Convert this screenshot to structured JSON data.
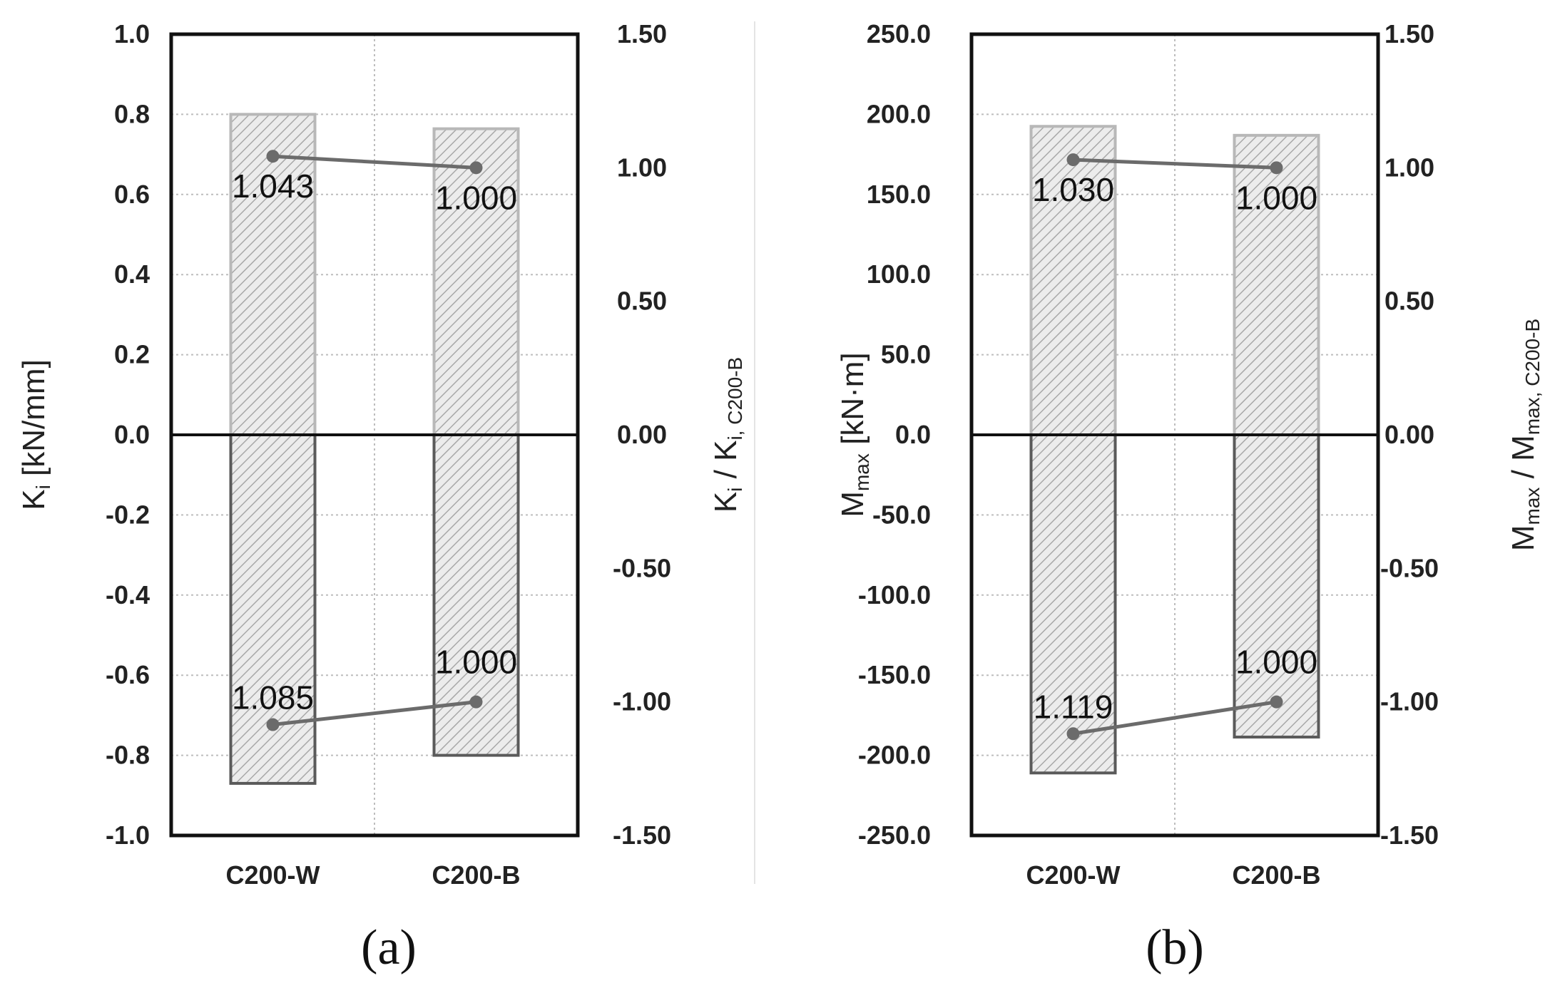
{
  "chart_data": [
    {
      "type": "bar",
      "panel_label": "(a)",
      "categories": [
        "C200-W",
        "C200-B"
      ],
      "ylabel": "K",
      "ylabel_sub": "i",
      "ylabel_unit": " [kN/mm]",
      "y2label": "K",
      "y2label_sub": "i",
      "y2label_mid": " / K",
      "y2label_sub2": "i, C200-B",
      "ylim": [
        -1.0,
        1.0
      ],
      "y_ticks": [
        "1.0",
        "0.8",
        "0.6",
        "0.4",
        "0.2",
        "0.0",
        "-0.2",
        "-0.4",
        "-0.6",
        "-0.8",
        "-1.0"
      ],
      "y2lim": [
        -1.5,
        1.5
      ],
      "y2_ticks": [
        "1.50",
        "1.00",
        "0.50",
        "0.00",
        "-0.50",
        "-1.00",
        "-1.50"
      ],
      "series": [
        {
          "name": "positive",
          "values": [
            0.8,
            0.764
          ]
        },
        {
          "name": "negative",
          "values": [
            -0.87,
            -0.8
          ]
        }
      ],
      "ratio_series": [
        {
          "name": "positive ratio",
          "values": [
            1.043,
            1.0
          ],
          "labels": [
            "1.043",
            "1.000"
          ]
        },
        {
          "name": "negative ratio",
          "values": [
            -1.085,
            -1.0
          ],
          "labels": [
            "1.085",
            "1.000"
          ]
        }
      ]
    },
    {
      "type": "bar",
      "panel_label": "(b)",
      "categories": [
        "C200-W",
        "C200-B"
      ],
      "ylabel": "M",
      "ylabel_sub": "max",
      "ylabel_unit": " [kN·m]",
      "y2label": "M",
      "y2label_sub": "max",
      "y2label_mid": " / M",
      "y2label_sub2": "max, C200-B",
      "ylim": [
        -250.0,
        250.0
      ],
      "y_ticks": [
        "250.0",
        "200.0",
        "150.0",
        "100.0",
        "50.0",
        "0.0",
        "-50.0",
        "-100.0",
        "-150.0",
        "-200.0",
        "-250.0"
      ],
      "y2lim": [
        -1.5,
        1.5
      ],
      "y2_ticks": [
        "1.50",
        "1.00",
        "0.50",
        "0.00",
        "-0.50",
        "-1.00",
        "-1.50"
      ],
      "series": [
        {
          "name": "positive",
          "values": [
            192.5,
            186.9
          ]
        },
        {
          "name": "negative",
          "values": [
            -211.0,
            -188.6
          ]
        }
      ],
      "ratio_series": [
        {
          "name": "positive ratio",
          "values": [
            1.03,
            1.0
          ],
          "labels": [
            "1.030",
            "1.000"
          ]
        },
        {
          "name": "negative ratio",
          "values": [
            -1.119,
            -1.0
          ],
          "labels": [
            "1.119",
            "1.000"
          ]
        }
      ]
    }
  ],
  "colors": {
    "bar_positive_stroke": "#b8b8b8",
    "bar_negative_stroke": "#5a5a5a",
    "hatch": "#9a9a9a",
    "line": "#6b6b6b",
    "marker": "#6b6b6b"
  }
}
